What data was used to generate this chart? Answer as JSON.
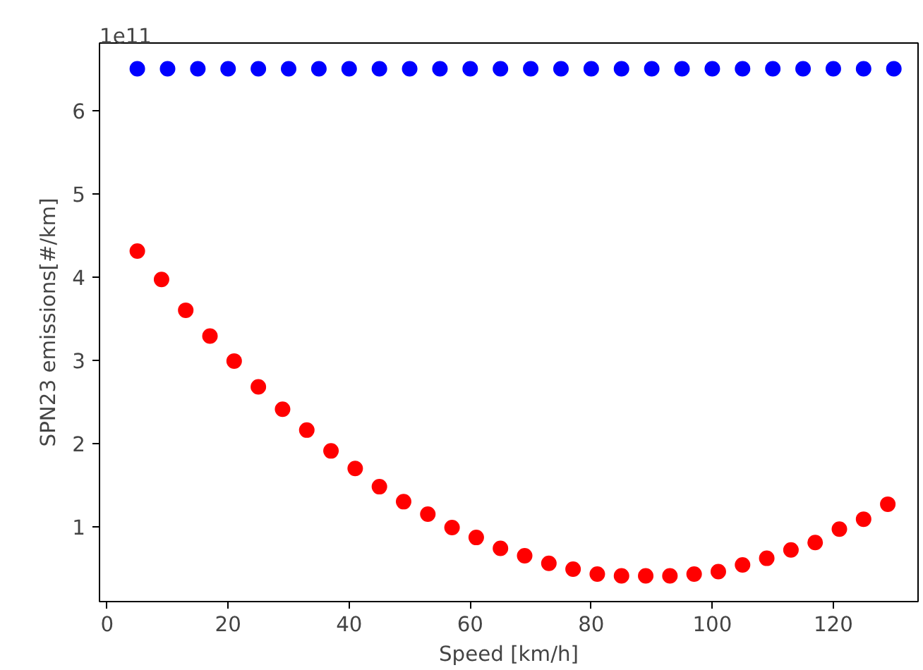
{
  "chart_data": {
    "type": "scatter",
    "xlabel": "Speed [km/h]",
    "ylabel": "SPN23 emissions[#/km]",
    "annotations": [
      "1e11"
    ],
    "marker": "circle",
    "grid": false,
    "xlim": [
      -1.25,
      134
    ],
    "xticks": [
      0,
      20,
      40,
      60,
      80,
      100,
      120
    ],
    "ylim": [
      0.1,
      6.81
    ],
    "yticks": [
      1,
      2,
      3,
      4,
      5,
      6
    ],
    "series": [
      {
        "color": "#0000ff",
        "x": [
          5,
          10,
          15,
          20,
          25,
          30,
          35,
          40,
          45,
          50,
          55,
          60,
          65,
          70,
          75,
          80,
          85,
          90,
          95,
          100,
          105,
          110,
          115,
          120,
          125,
          130
        ],
        "values": [
          6.5,
          6.5,
          6.5,
          6.5,
          6.5,
          6.5,
          6.5,
          6.5,
          6.5,
          6.5,
          6.5,
          6.5,
          6.5,
          6.5,
          6.5,
          6.5,
          6.5,
          6.5,
          6.5,
          6.5,
          6.5,
          6.5,
          6.5,
          6.5,
          6.5,
          6.5
        ]
      },
      {
        "color": "#ff0000",
        "x": [
          5,
          9,
          13,
          17,
          21,
          25,
          29,
          33,
          37,
          41,
          45,
          49,
          53,
          57,
          61,
          65,
          69,
          73,
          77,
          81,
          85,
          89,
          93,
          97,
          101,
          105,
          109,
          113,
          117,
          121,
          125,
          129
        ],
        "values": [
          4.31,
          3.97,
          3.6,
          3.29,
          2.99,
          2.68,
          2.41,
          2.16,
          1.91,
          1.7,
          1.48,
          1.3,
          1.15,
          0.99,
          0.87,
          0.74,
          0.65,
          0.56,
          0.49,
          0.43,
          0.41,
          0.41,
          0.41,
          0.43,
          0.46,
          0.54,
          0.62,
          0.72,
          0.81,
          0.97,
          1.09,
          1.27
        ]
      }
    ]
  }
}
